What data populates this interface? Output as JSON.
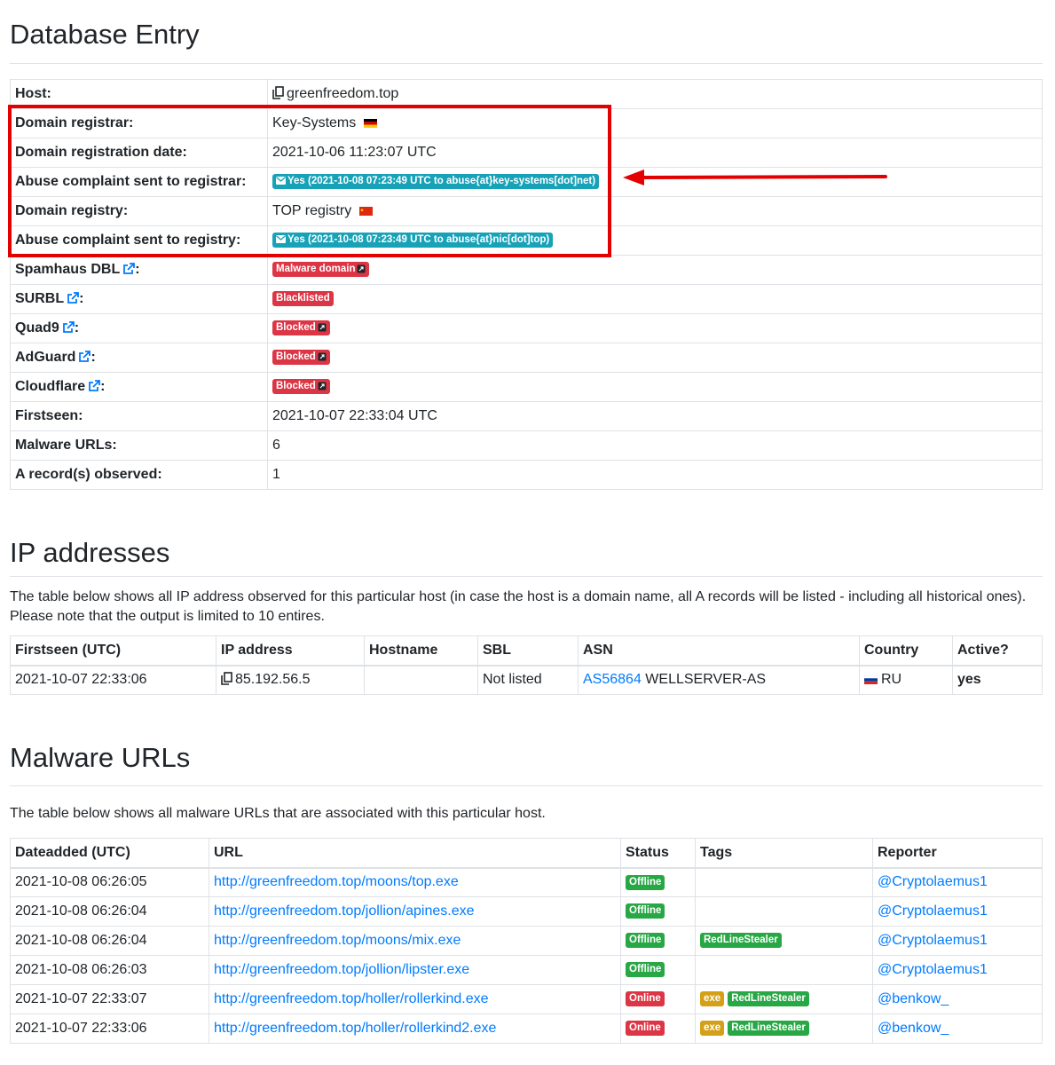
{
  "db": {
    "title": "Database Entry",
    "rows": {
      "host": {
        "label": "Host:",
        "value": "greenfreedom.top"
      },
      "registrar": {
        "label": "Domain registrar:",
        "value": "Key-Systems"
      },
      "reg_date": {
        "label": "Domain registration date:",
        "value": "2021-10-06 11:23:07 UTC"
      },
      "abuse_registrar": {
        "label": "Abuse complaint sent to registrar:",
        "value": "Yes (2021-10-08 07:23:49 UTC to abuse{at}key-systems[dot]net)"
      },
      "registry": {
        "label": "Domain registry:",
        "value": "TOP registry"
      },
      "abuse_registry": {
        "label": "Abuse complaint sent to registry:",
        "value": "Yes (2021-10-08 07:23:49 UTC to abuse{at}nic[dot]top)"
      },
      "spamhaus": {
        "label": "Spamhaus DBL",
        "value": "Malware domain"
      },
      "surbl": {
        "label": "SURBL",
        "value": "Blacklisted"
      },
      "quad9": {
        "label": "Quad9",
        "value": "Blocked"
      },
      "adguard": {
        "label": "AdGuard",
        "value": "Blocked"
      },
      "cloudflare": {
        "label": "Cloudflare",
        "value": "Blocked"
      },
      "firstseen": {
        "label": "Firstseen:",
        "value": "2021-10-07 22:33:04 UTC"
      },
      "malware_urls": {
        "label": "Malware URLs:",
        "value": "6"
      },
      "a_records": {
        "label": "A record(s) observed:",
        "value": "1"
      }
    },
    "colon": ":"
  },
  "ip": {
    "title": "IP addresses",
    "description": "The table below shows all IP address observed for this particular host (in case the host is a domain name, all A records will be listed - including all historical ones). Please note that the output is limited to 10 entires.",
    "headers": [
      "Firstseen (UTC)",
      "IP address",
      "Hostname",
      "SBL",
      "ASN",
      "Country",
      "Active?"
    ],
    "row": {
      "firstseen": "2021-10-07 22:33:06",
      "ip": "85.192.56.5",
      "hostname": "",
      "sbl": "Not listed",
      "asn_link": "AS56864",
      "asn_name": "WELLSERVER-AS",
      "country": "RU",
      "active": "yes"
    }
  },
  "malware": {
    "title": "Malware URLs",
    "description": "The table below shows all malware URLs that are associated with this particular host.",
    "headers": [
      "Dateadded (UTC)",
      "URL",
      "Status",
      "Tags",
      "Reporter"
    ],
    "rows": [
      {
        "date": "2021-10-08 06:26:05",
        "url": "http://greenfreedom.top/moons/top.exe",
        "status": "Offline",
        "tag1": "",
        "tag2": "",
        "reporter": "@Cryptolaemus1"
      },
      {
        "date": "2021-10-08 06:26:04",
        "url": "http://greenfreedom.top/jollion/apines.exe",
        "status": "Offline",
        "tag1": "",
        "tag2": "",
        "reporter": "@Cryptolaemus1"
      },
      {
        "date": "2021-10-08 06:26:04",
        "url": "http://greenfreedom.top/moons/mix.exe",
        "status": "Offline",
        "tag1": "",
        "tag2": "RedLineStealer",
        "reporter": "@Cryptolaemus1"
      },
      {
        "date": "2021-10-08 06:26:03",
        "url": "http://greenfreedom.top/jollion/lipster.exe",
        "status": "Offline",
        "tag1": "",
        "tag2": "",
        "reporter": "@Cryptolaemus1"
      },
      {
        "date": "2021-10-07 22:33:07",
        "url": "http://greenfreedom.top/holler/rollerkind.exe",
        "status": "Online",
        "tag1": "exe",
        "tag2": "RedLineStealer",
        "reporter": "@benkow_"
      },
      {
        "date": "2021-10-07 22:33:06",
        "url": "http://greenfreedom.top/holler/rollerkind2.exe",
        "status": "Online",
        "tag1": "exe",
        "tag2": "RedLineStealer",
        "reporter": "@benkow_"
      }
    ]
  },
  "colors": {
    "accent_link": "#007bff",
    "badge_red": "#dc3545",
    "badge_teal": "#17a2b8",
    "badge_green": "#28a745",
    "highlight_red": "#e30000"
  },
  "icons": [
    "copy-icon",
    "envelope-icon",
    "external-link-icon",
    "flag-de-icon",
    "flag-cn-icon",
    "flag-ru-icon"
  ]
}
